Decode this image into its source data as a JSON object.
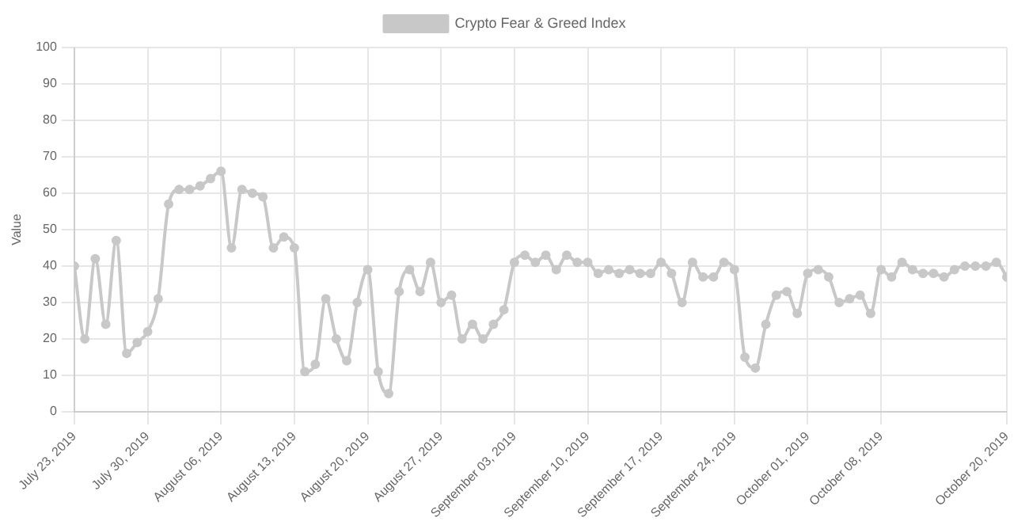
{
  "chart_data": {
    "type": "line",
    "ylabel": "Value",
    "legend": "top",
    "grid": true,
    "marker": "circle",
    "line_style": "solid",
    "ylim": [
      0,
      100
    ],
    "yticks": [
      0,
      10,
      20,
      30,
      40,
      50,
      60,
      70,
      80,
      90,
      100
    ],
    "xlim": [
      "2019-07-23",
      "2019-10-20"
    ],
    "xticks": [
      {
        "value": "2019-07-23",
        "label": "July 23, 2019"
      },
      {
        "value": "2019-07-30",
        "label": "July 30, 2019"
      },
      {
        "value": "2019-08-06",
        "label": "August 06, 2019"
      },
      {
        "value": "2019-08-13",
        "label": "August 13, 2019"
      },
      {
        "value": "2019-08-20",
        "label": "August 20, 2019"
      },
      {
        "value": "2019-08-27",
        "label": "August 27, 2019"
      },
      {
        "value": "2019-09-03",
        "label": "September 03, 2019"
      },
      {
        "value": "2019-09-10",
        "label": "September 10, 2019"
      },
      {
        "value": "2019-09-17",
        "label": "September 17, 2019"
      },
      {
        "value": "2019-09-24",
        "label": "September 24, 2019"
      },
      {
        "value": "2019-10-01",
        "label": "October 01, 2019"
      },
      {
        "value": "2019-10-08",
        "label": "October 08, 2019"
      },
      {
        "value": "2019-10-20",
        "label": "October 20, 2019"
      }
    ],
    "x": [
      "2019-07-23",
      "2019-07-24",
      "2019-07-25",
      "2019-07-26",
      "2019-07-27",
      "2019-07-28",
      "2019-07-29",
      "2019-07-30",
      "2019-07-31",
      "2019-08-01",
      "2019-08-02",
      "2019-08-03",
      "2019-08-04",
      "2019-08-05",
      "2019-08-06",
      "2019-08-07",
      "2019-08-08",
      "2019-08-09",
      "2019-08-10",
      "2019-08-11",
      "2019-08-12",
      "2019-08-13",
      "2019-08-14",
      "2019-08-15",
      "2019-08-16",
      "2019-08-17",
      "2019-08-18",
      "2019-08-19",
      "2019-08-20",
      "2019-08-21",
      "2019-08-22",
      "2019-08-23",
      "2019-08-24",
      "2019-08-25",
      "2019-08-26",
      "2019-08-27",
      "2019-08-28",
      "2019-08-29",
      "2019-08-30",
      "2019-08-31",
      "2019-09-01",
      "2019-09-02",
      "2019-09-03",
      "2019-09-04",
      "2019-09-05",
      "2019-09-06",
      "2019-09-07",
      "2019-09-08",
      "2019-09-09",
      "2019-09-10",
      "2019-09-11",
      "2019-09-12",
      "2019-09-13",
      "2019-09-14",
      "2019-09-15",
      "2019-09-16",
      "2019-09-17",
      "2019-09-18",
      "2019-09-19",
      "2019-09-20",
      "2019-09-21",
      "2019-09-22",
      "2019-09-23",
      "2019-09-24",
      "2019-09-25",
      "2019-09-26",
      "2019-09-27",
      "2019-09-28",
      "2019-09-29",
      "2019-09-30",
      "2019-10-01",
      "2019-10-02",
      "2019-10-03",
      "2019-10-04",
      "2019-10-05",
      "2019-10-06",
      "2019-10-07",
      "2019-10-08",
      "2019-10-09",
      "2019-10-10",
      "2019-10-11",
      "2019-10-12",
      "2019-10-13",
      "2019-10-14",
      "2019-10-15",
      "2019-10-16",
      "2019-10-17",
      "2019-10-18",
      "2019-10-19",
      "2019-10-20"
    ],
    "series": [
      {
        "name": "Crypto Fear & Greed Index",
        "color": "#c8c8c8",
        "values": [
          40,
          20,
          42,
          24,
          47,
          16,
          19,
          22,
          31,
          57,
          61,
          61,
          62,
          64,
          66,
          45,
          61,
          60,
          59,
          45,
          48,
          45,
          11,
          13,
          31,
          20,
          14,
          30,
          39,
          11,
          5,
          33,
          39,
          33,
          41,
          30,
          32,
          20,
          24,
          20,
          24,
          28,
          41,
          43,
          41,
          43,
          39,
          43,
          41,
          41,
          38,
          39,
          38,
          39,
          38,
          38,
          41,
          38,
          30,
          41,
          37,
          37,
          41,
          39,
          15,
          12,
          24,
          32,
          33,
          27,
          38,
          39,
          37,
          30,
          31,
          32,
          27,
          39,
          37,
          41,
          39,
          38,
          38,
          37,
          39,
          40,
          40,
          40,
          41,
          37
        ]
      }
    ]
  }
}
